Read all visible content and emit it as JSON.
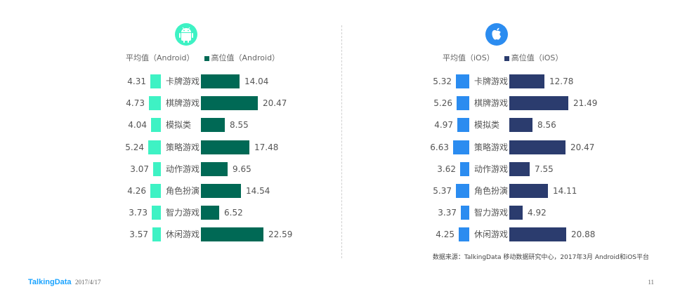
{
  "colors": {
    "android_avg": "#3ef2c4",
    "android_max": "#006955",
    "android_icon": "#3ef2c4",
    "ios_avg": "#2b8cf0",
    "ios_max": "#2b3c6e",
    "ios_icon": "#2b8cf0"
  },
  "icons": {
    "android": "android-icon",
    "ios": "apple-icon"
  },
  "android": {
    "legend_avg": "平均值（Android）",
    "legend_max": "高位值（Android）"
  },
  "ios": {
    "legend_avg": "平均值（iOS）",
    "legend_max": "高位值（iOS）"
  },
  "chart_data": [
    {
      "type": "bar",
      "categories": [
        "卡牌游戏",
        "棋牌游戏",
        "模拟类",
        "策略游戏",
        "动作游戏",
        "角色扮演",
        "智力游戏",
        "休闲游戏"
      ],
      "series": [
        {
          "name": "平均值（Android）",
          "values": [
            4.31,
            4.73,
            4.04,
            5.24,
            3.07,
            4.26,
            3.73,
            3.57
          ]
        },
        {
          "name": "高位值（Android）",
          "values": [
            14.04,
            20.47,
            8.55,
            17.48,
            9.65,
            14.54,
            6.52,
            22.59
          ]
        }
      ]
    },
    {
      "type": "bar",
      "categories": [
        "卡牌游戏",
        "棋牌游戏",
        "模拟类",
        "策略游戏",
        "动作游戏",
        "角色扮演",
        "智力游戏",
        "休闲游戏"
      ],
      "series": [
        {
          "name": "平均值（iOS）",
          "values": [
            5.32,
            5.26,
            4.97,
            6.63,
            3.62,
            5.37,
            3.37,
            4.25
          ]
        },
        {
          "name": "高位值（iOS）",
          "values": [
            12.78,
            21.49,
            8.56,
            20.47,
            7.55,
            14.11,
            4.92,
            20.88
          ]
        }
      ]
    }
  ],
  "source": "数据来源：TalkingData 移动数据研究中心，2017年3月 Android和iOS平台",
  "footer": {
    "logo": "TalkingData",
    "date": "2017/4/17",
    "page": "11"
  }
}
